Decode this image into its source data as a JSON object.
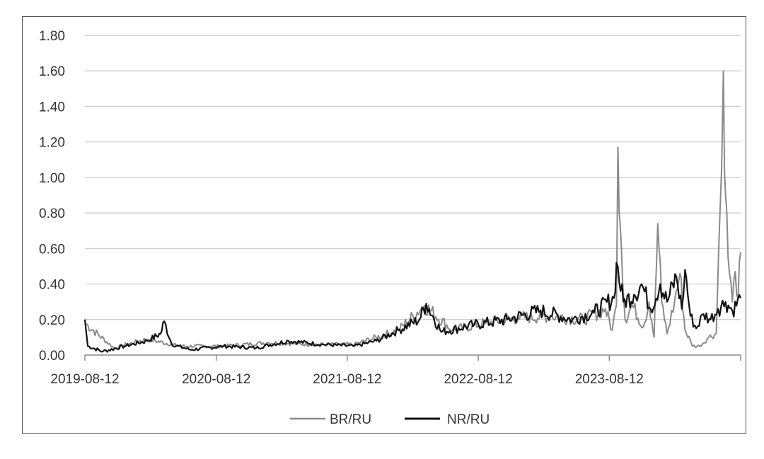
{
  "chart_data": {
    "type": "line",
    "title": "",
    "xlabel": "",
    "ylabel": "",
    "grid": true,
    "legend_position": "bottom",
    "ylim": [
      0,
      1.8
    ],
    "y_ticks": [
      "0.00",
      "0.20",
      "0.40",
      "0.60",
      "0.80",
      "1.00",
      "1.20",
      "1.40",
      "1.60",
      "1.80"
    ],
    "x_ticks": [
      "2019-08-12",
      "2020-08-12",
      "2021-08-12",
      "2022-08-12",
      "2023-08-12"
    ],
    "x_range": [
      "2019-08-12",
      "2024-08-12"
    ],
    "series": [
      {
        "name": "BR/RU",
        "color": "#8a8a8a",
        "points": [
          [
            "2019-08-12",
            0.18
          ],
          [
            "2019-11-01",
            0.04
          ],
          [
            "2020-02-01",
            0.09
          ],
          [
            "2020-05-01",
            0.05
          ],
          [
            "2020-09-01",
            0.05
          ],
          [
            "2021-01-01",
            0.07
          ],
          [
            "2021-05-01",
            0.06
          ],
          [
            "2021-09-01",
            0.06
          ],
          [
            "2022-01-01",
            0.14
          ],
          [
            "2022-03-15",
            0.28
          ],
          [
            "2022-06-01",
            0.14
          ],
          [
            "2022-09-01",
            0.18
          ],
          [
            "2022-12-01",
            0.21
          ],
          [
            "2023-03-01",
            0.22
          ],
          [
            "2023-06-01",
            0.2
          ],
          [
            "2023-08-01",
            0.26
          ],
          [
            "2023-08-20",
            0.14
          ],
          [
            "2023-09-01",
            0.28
          ],
          [
            "2023-09-05",
            1.17
          ],
          [
            "2023-09-15",
            0.6
          ],
          [
            "2023-09-25",
            0.2
          ],
          [
            "2023-10-15",
            0.28
          ],
          [
            "2023-11-15",
            0.16
          ],
          [
            "2023-12-01",
            0.3
          ],
          [
            "2023-12-15",
            0.1
          ],
          [
            "2023-12-25",
            0.74
          ],
          [
            "2024-01-05",
            0.3
          ],
          [
            "2024-01-20",
            0.12
          ],
          [
            "2024-02-10",
            0.3
          ],
          [
            "2024-02-25",
            0.46
          ],
          [
            "2024-03-10",
            0.14
          ],
          [
            "2024-04-01",
            0.05
          ],
          [
            "2024-04-20",
            0.05
          ],
          [
            "2024-05-15",
            0.1
          ],
          [
            "2024-06-05",
            0.12
          ],
          [
            "2024-06-12",
            0.6
          ],
          [
            "2024-06-20",
            1.05
          ],
          [
            "2024-06-25",
            1.6
          ],
          [
            "2024-07-01",
            0.9
          ],
          [
            "2024-07-08",
            0.55
          ],
          [
            "2024-07-20",
            0.3
          ],
          [
            "2024-07-28",
            0.47
          ],
          [
            "2024-08-05",
            0.32
          ],
          [
            "2024-08-12",
            0.58
          ]
        ]
      },
      {
        "name": "NR/RU",
        "color": "#111111",
        "points": [
          [
            "2019-08-12",
            0.2
          ],
          [
            "2019-08-20",
            0.05
          ],
          [
            "2019-10-01",
            0.02
          ],
          [
            "2019-12-01",
            0.05
          ],
          [
            "2020-02-01",
            0.08
          ],
          [
            "2020-03-10",
            0.12
          ],
          [
            "2020-03-20",
            0.19
          ],
          [
            "2020-04-10",
            0.06
          ],
          [
            "2020-06-01",
            0.03
          ],
          [
            "2020-09-01",
            0.05
          ],
          [
            "2020-12-01",
            0.04
          ],
          [
            "2021-03-01",
            0.08
          ],
          [
            "2021-06-01",
            0.06
          ],
          [
            "2021-09-01",
            0.05
          ],
          [
            "2021-11-01",
            0.08
          ],
          [
            "2022-01-01",
            0.14
          ],
          [
            "2022-03-01",
            0.2
          ],
          [
            "2022-03-20",
            0.29
          ],
          [
            "2022-05-01",
            0.13
          ],
          [
            "2022-08-01",
            0.17
          ],
          [
            "2022-11-01",
            0.2
          ],
          [
            "2023-02-01",
            0.25
          ],
          [
            "2023-05-01",
            0.2
          ],
          [
            "2023-07-01",
            0.24
          ],
          [
            "2023-08-25",
            0.32
          ],
          [
            "2023-09-01",
            0.52
          ],
          [
            "2023-09-20",
            0.3
          ],
          [
            "2023-10-20",
            0.34
          ],
          [
            "2023-11-10",
            0.4
          ],
          [
            "2023-12-05",
            0.26
          ],
          [
            "2024-01-01",
            0.4
          ],
          [
            "2024-01-20",
            0.3
          ],
          [
            "2024-02-15",
            0.44
          ],
          [
            "2024-03-01",
            0.26
          ],
          [
            "2024-03-10",
            0.48
          ],
          [
            "2024-03-25",
            0.22
          ],
          [
            "2024-04-10",
            0.15
          ],
          [
            "2024-05-01",
            0.23
          ],
          [
            "2024-05-20",
            0.2
          ],
          [
            "2024-06-10",
            0.26
          ],
          [
            "2024-07-01",
            0.3
          ],
          [
            "2024-07-20",
            0.25
          ],
          [
            "2024-08-12",
            0.32
          ]
        ]
      }
    ]
  }
}
